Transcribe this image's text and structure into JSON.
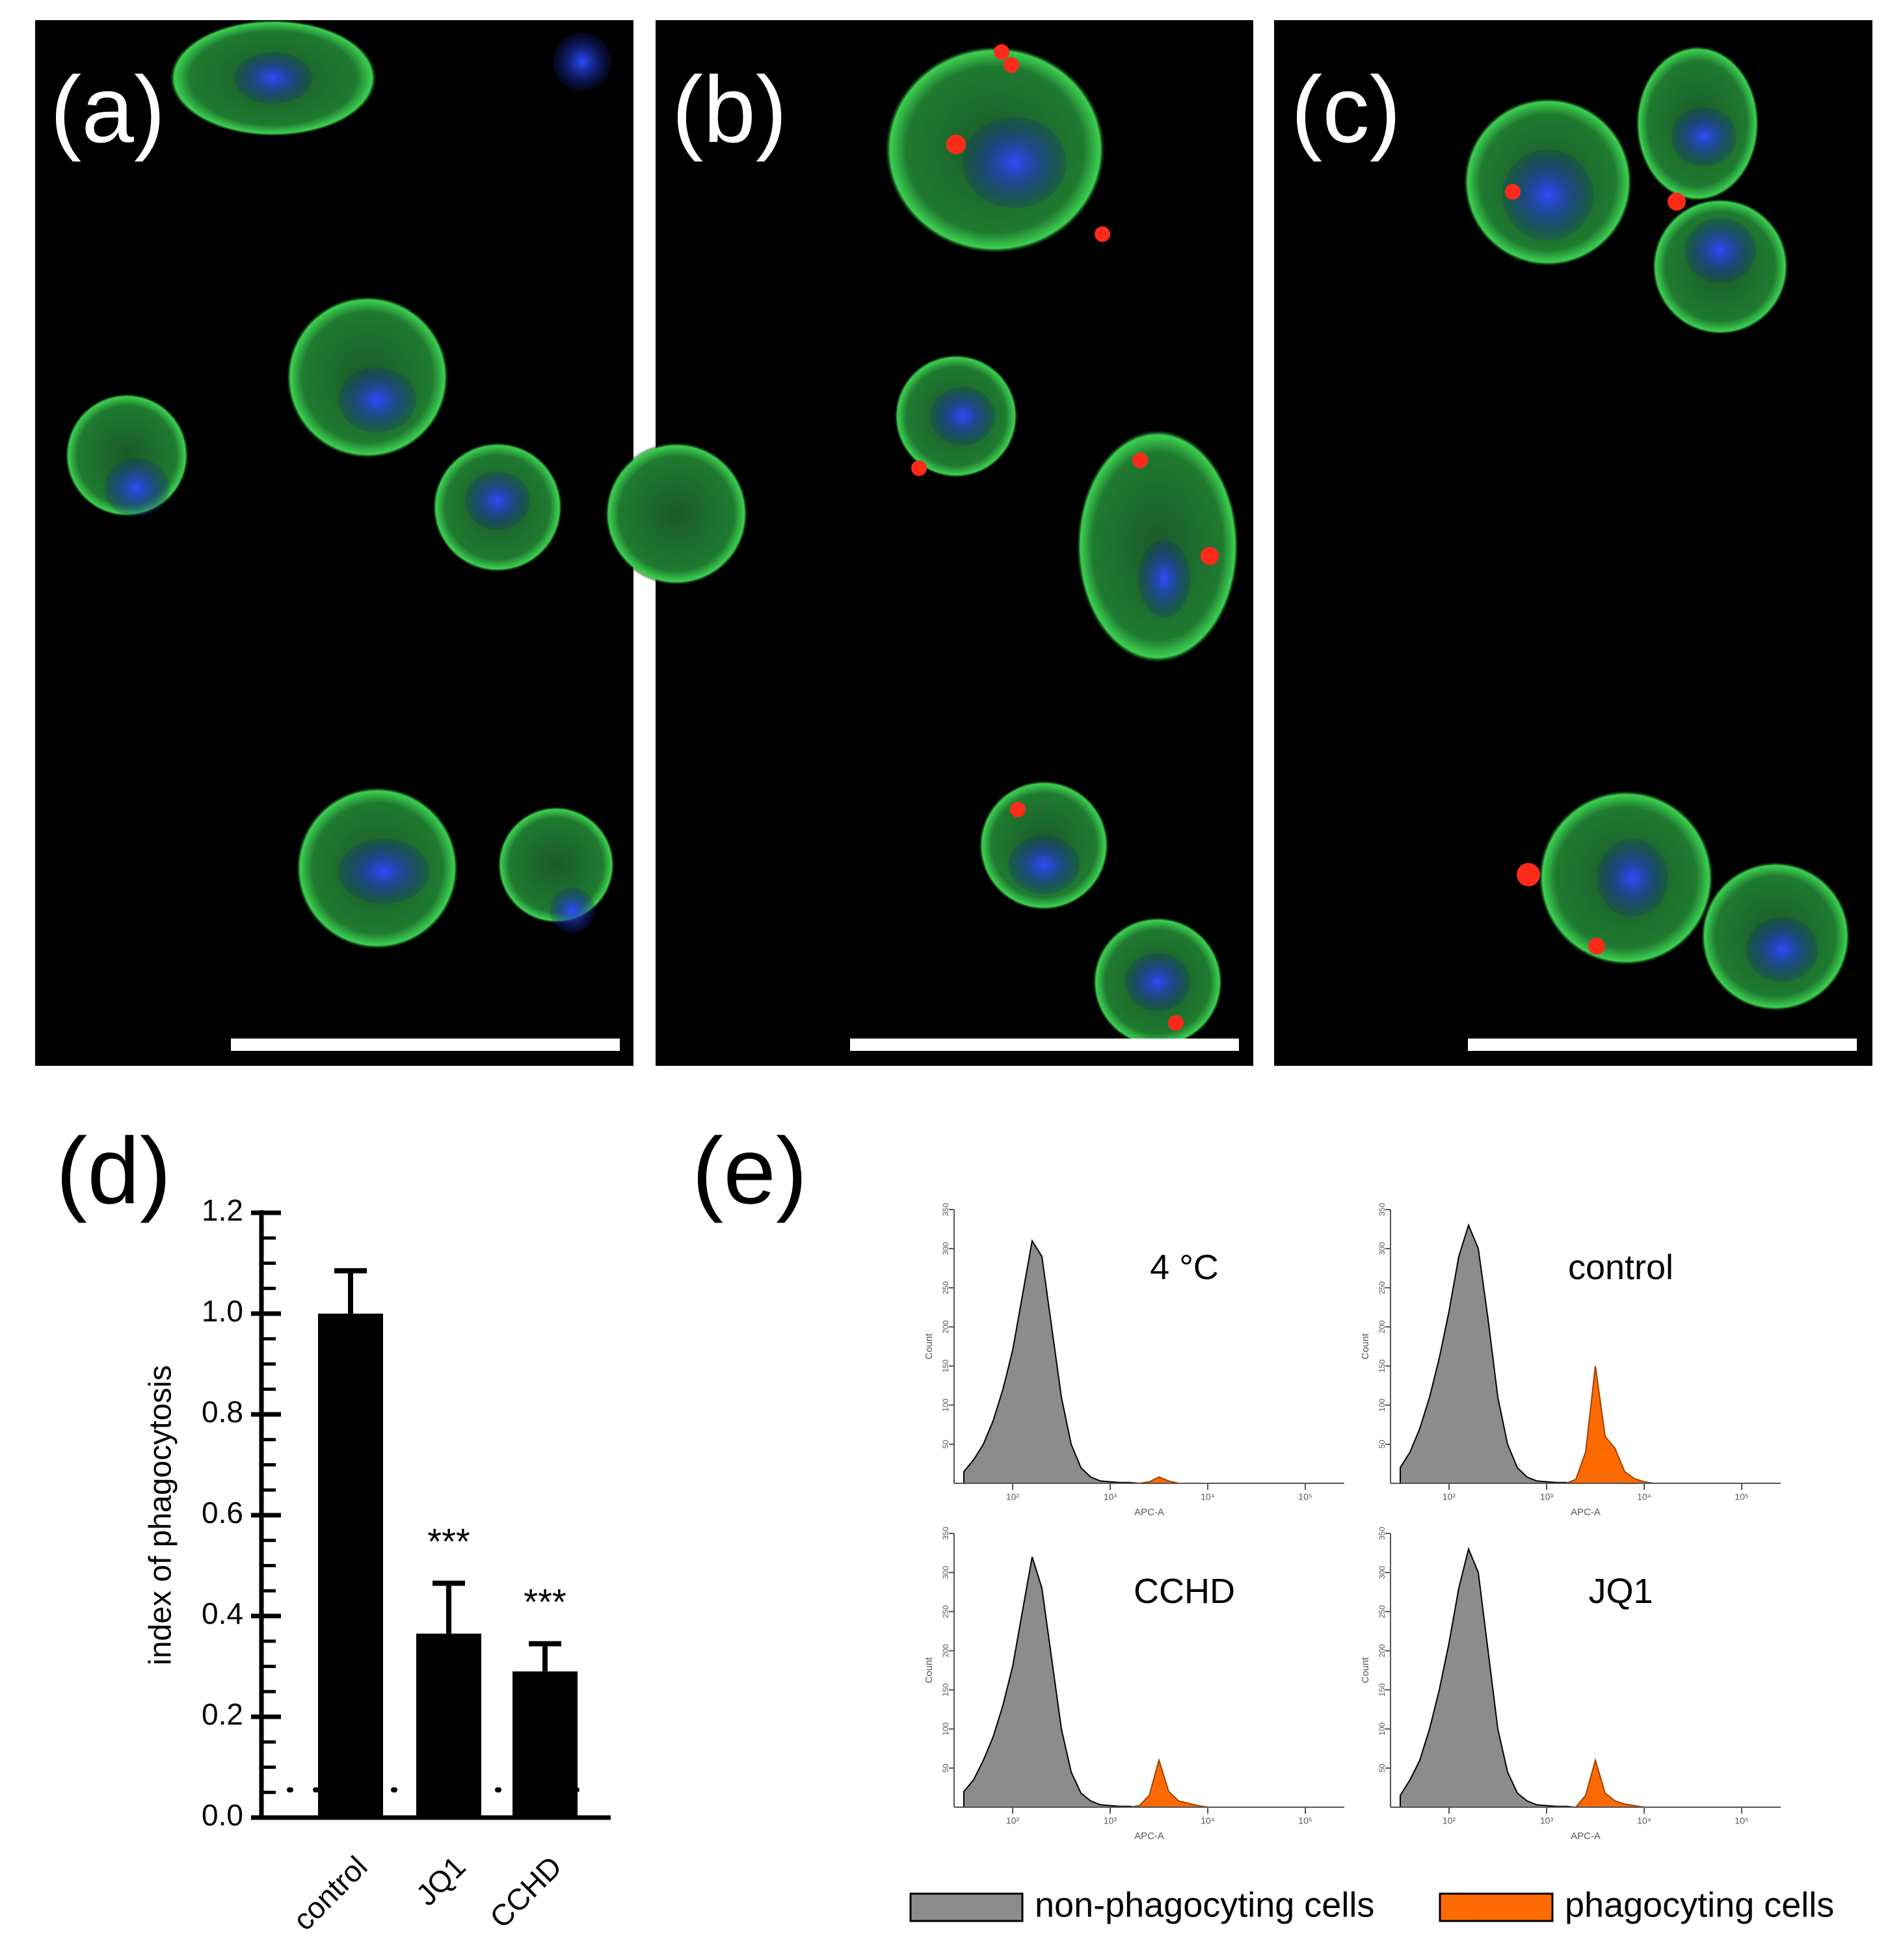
{
  "panel_labels": [
    "(a)",
    "(b)",
    "(c)",
    "(d)",
    "(e)"
  ],
  "chart_data": [
    {
      "type": "bar",
      "ylabel": "index of phagocytosis",
      "categories": [
        "control",
        "JQ1",
        "CCHD"
      ],
      "values": [
        1.0,
        0.365,
        0.29
      ],
      "errors": [
        0.085,
        0.1,
        0.055
      ],
      "color": "#000000",
      "ylim": [
        0,
        1.2
      ],
      "yticks": [
        {
          "value": 0,
          "label": "0.0"
        },
        0.2,
        0.4,
        0.6,
        0.8,
        {
          "value": 1,
          "label": "1.0"
        },
        1.2
      ],
      "reference_line": 0.055,
      "annotations": [
        {
          "text": "***",
          "category": "JQ1"
        },
        {
          "text": "***",
          "category": "CCHD"
        }
      ]
    },
    {
      "type": "area",
      "title": "4 °C",
      "xlabel": "APC-A",
      "ylabel": "Count",
      "xlim": [
        1.4,
        5.4
      ],
      "ylim": [
        0,
        350
      ],
      "xticks": [
        {
          "value": 2,
          "label": "10²"
        },
        {
          "value": 3,
          "label": "10³"
        },
        {
          "value": 4,
          "label": "10⁴"
        },
        {
          "value": 5,
          "label": "10⁵"
        }
      ],
      "yticks": [
        50,
        100,
        150,
        200,
        250,
        300,
        350
      ],
      "x": [
        1.5,
        1.6,
        1.7,
        1.8,
        1.9,
        2.0,
        2.1,
        2.2,
        2.3,
        2.4,
        2.5,
        2.6,
        2.7,
        2.8,
        2.9,
        3.0,
        3.1,
        3.2,
        3.3,
        3.4,
        3.5,
        3.6,
        3.7,
        3.8,
        3.9,
        4.0,
        4.1,
        4.2
      ],
      "series": [
        {
          "name": "non-phagocyting cells",
          "color": "#8c8c8c",
          "values": [
            15,
            30,
            50,
            80,
            120,
            170,
            240,
            310,
            290,
            200,
            110,
            50,
            20,
            8,
            3,
            2,
            1,
            1,
            0,
            0,
            0,
            0,
            0,
            0,
            0,
            0,
            0,
            0
          ]
        },
        {
          "name": "phagocyting cells",
          "color": "#ff6a00",
          "values": [
            0,
            0,
            0,
            0,
            0,
            0,
            0,
            0,
            0,
            0,
            0,
            0,
            0,
            0,
            0,
            0,
            0,
            0,
            0,
            2,
            8,
            3,
            0,
            0,
            0,
            0,
            0,
            0
          ]
        }
      ]
    },
    {
      "type": "area",
      "title": "control",
      "xlabel": "APC-A",
      "ylabel": "Count",
      "xlim": [
        1.4,
        5.4
      ],
      "ylim": [
        0,
        350
      ],
      "xticks": [
        {
          "value": 2,
          "label": "10²"
        },
        {
          "value": 3,
          "label": "10³"
        },
        {
          "value": 4,
          "label": "10⁴"
        },
        {
          "value": 5,
          "label": "10⁵"
        }
      ],
      "yticks": [
        50,
        100,
        150,
        200,
        250,
        300,
        350
      ],
      "x": [
        1.5,
        1.6,
        1.7,
        1.8,
        1.9,
        2.0,
        2.1,
        2.2,
        2.3,
        2.4,
        2.5,
        2.6,
        2.7,
        2.8,
        2.9,
        3.0,
        3.1,
        3.2,
        3.3,
        3.4,
        3.5,
        3.6,
        3.7,
        3.8,
        3.9,
        4.0,
        4.1,
        4.2
      ],
      "series": [
        {
          "name": "non-phagocyting cells",
          "color": "#8c8c8c",
          "values": [
            20,
            40,
            70,
            110,
            160,
            220,
            290,
            330,
            300,
            210,
            110,
            50,
            20,
            8,
            3,
            2,
            1,
            1,
            0,
            0,
            0,
            0,
            0,
            0,
            0,
            0,
            0,
            0
          ]
        },
        {
          "name": "phagocyting cells",
          "color": "#ff6a00",
          "values": [
            0,
            0,
            0,
            0,
            0,
            0,
            0,
            0,
            0,
            0,
            0,
            0,
            0,
            0,
            0,
            0,
            0,
            0,
            5,
            40,
            150,
            60,
            45,
            15,
            6,
            2,
            0,
            0
          ]
        }
      ]
    },
    {
      "type": "area",
      "title": "CCHD",
      "xlabel": "APC-A",
      "ylabel": "Count",
      "xlim": [
        1.4,
        5.4
      ],
      "ylim": [
        0,
        350
      ],
      "xticks": [
        {
          "value": 2,
          "label": "10²"
        },
        {
          "value": 3,
          "label": "10³"
        },
        {
          "value": 4,
          "label": "10⁴"
        },
        {
          "value": 5,
          "label": "10⁵"
        }
      ],
      "yticks": [
        50,
        100,
        150,
        200,
        250,
        300,
        350
      ],
      "x": [
        1.5,
        1.6,
        1.7,
        1.8,
        1.9,
        2.0,
        2.1,
        2.2,
        2.3,
        2.4,
        2.5,
        2.6,
        2.7,
        2.8,
        2.9,
        3.0,
        3.1,
        3.2,
        3.3,
        3.4,
        3.5,
        3.6,
        3.7,
        3.8,
        3.9,
        4.0,
        4.1,
        4.2
      ],
      "series": [
        {
          "name": "non-phagocyting cells",
          "color": "#8c8c8c",
          "values": [
            20,
            35,
            60,
            90,
            130,
            180,
            250,
            320,
            280,
            190,
            100,
            45,
            18,
            8,
            3,
            2,
            1,
            1,
            0,
            0,
            0,
            0,
            0,
            0,
            0,
            0,
            0,
            0
          ]
        },
        {
          "name": "phagocyting cells",
          "color": "#ff6a00",
          "values": [
            0,
            0,
            0,
            0,
            0,
            0,
            0,
            0,
            0,
            0,
            0,
            0,
            0,
            0,
            0,
            0,
            0,
            0,
            2,
            15,
            60,
            20,
            8,
            5,
            2,
            0,
            0,
            0
          ]
        }
      ]
    },
    {
      "type": "area",
      "title": "JQ1",
      "xlabel": "APC-A",
      "ylabel": "Count",
      "xlim": [
        1.4,
        5.4
      ],
      "ylim": [
        0,
        350
      ],
      "xticks": [
        {
          "value": 2,
          "label": "10²"
        },
        {
          "value": 3,
          "label": "10³"
        },
        {
          "value": 4,
          "label": "10⁴"
        },
        {
          "value": 5,
          "label": "10⁵"
        }
      ],
      "yticks": [
        50,
        100,
        150,
        200,
        250,
        300,
        350
      ],
      "x": [
        1.5,
        1.6,
        1.7,
        1.8,
        1.9,
        2.0,
        2.1,
        2.2,
        2.3,
        2.4,
        2.5,
        2.6,
        2.7,
        2.8,
        2.9,
        3.0,
        3.1,
        3.2,
        3.3,
        3.4,
        3.5,
        3.6,
        3.7,
        3.8,
        3.9,
        4.0,
        4.1,
        4.2
      ],
      "series": [
        {
          "name": "non-phagocyting cells",
          "color": "#8c8c8c",
          "values": [
            15,
            35,
            60,
            100,
            150,
            210,
            280,
            330,
            300,
            200,
            100,
            45,
            18,
            8,
            3,
            2,
            1,
            1,
            0,
            0,
            0,
            0,
            0,
            0,
            0,
            0,
            0,
            0
          ]
        },
        {
          "name": "phagocyting cells",
          "color": "#ff6a00",
          "values": [
            0,
            0,
            0,
            0,
            0,
            0,
            0,
            0,
            0,
            0,
            0,
            0,
            0,
            0,
            0,
            0,
            0,
            0,
            0,
            15,
            60,
            18,
            8,
            4,
            2,
            0,
            0,
            0
          ]
        }
      ]
    }
  ]
}
